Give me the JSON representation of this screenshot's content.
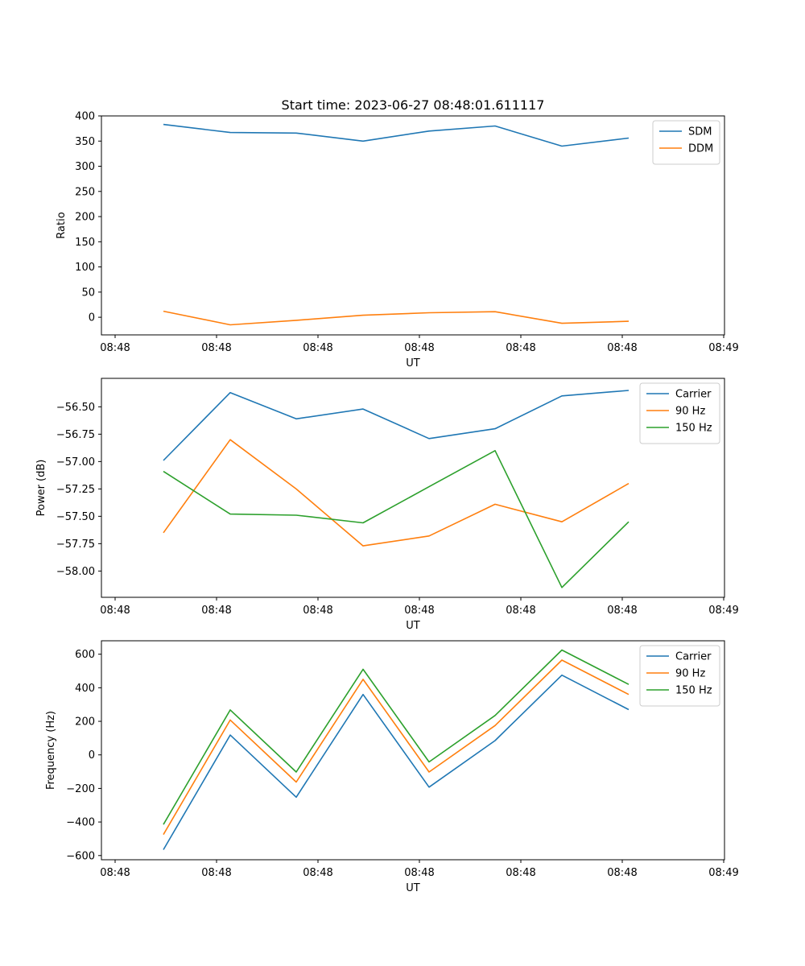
{
  "figure_title": "Start time: 2023-06-27 08:48:01.611117",
  "colors": {
    "blue": "#1f77b4",
    "orange": "#ff7f0e",
    "green": "#2ca02c"
  },
  "chart_data": [
    {
      "type": "line",
      "xlabel": "UT",
      "ylabel": "Ratio",
      "x_tick_labels": [
        "08:48",
        "08:48",
        "08:48",
        "08:48",
        "08:48",
        "08:48",
        "08:49"
      ],
      "yticks": [
        0,
        50,
        100,
        150,
        200,
        250,
        300,
        350,
        400
      ],
      "y_tick_labels": [
        "0",
        "50",
        "100",
        "150",
        "200",
        "250",
        "300",
        "350",
        "400"
      ],
      "ylim": [
        -35,
        400
      ],
      "legend": "upper right",
      "grid": false,
      "series": [
        {
          "name": "SDM",
          "color": "#1f77b4",
          "values": [
            383,
            367,
            366,
            350,
            370,
            380,
            340,
            356
          ]
        },
        {
          "name": "DDM",
          "color": "#ff7f0e",
          "values": [
            12,
            -15,
            -6,
            4,
            9,
            11,
            -12,
            -8
          ]
        }
      ]
    },
    {
      "type": "line",
      "xlabel": "UT",
      "ylabel": "Power (dB)",
      "x_tick_labels": [
        "08:48",
        "08:48",
        "08:48",
        "08:48",
        "08:48",
        "08:48",
        "08:49"
      ],
      "yticks": [
        -56.5,
        -56.75,
        -57.0,
        -57.25,
        -57.5,
        -57.75,
        -58.0
      ],
      "y_tick_labels": [
        "−56.50",
        "−56.75",
        "−57.00",
        "−57.25",
        "−57.50",
        "−57.75",
        "−58.00"
      ],
      "ylim": [
        -58.24,
        -56.24
      ],
      "legend": "upper right",
      "grid": false,
      "series": [
        {
          "name": "Carrier",
          "color": "#1f77b4",
          "values": [
            -56.99,
            -56.37,
            -56.61,
            -56.52,
            -56.79,
            -56.7,
            -56.4,
            -56.35
          ]
        },
        {
          "name": "90 Hz",
          "color": "#ff7f0e",
          "values": [
            -57.65,
            -56.8,
            -57.25,
            -57.77,
            -57.68,
            -57.39,
            -57.55,
            -57.2
          ]
        },
        {
          "name": "150 Hz",
          "color": "#2ca02c",
          "values": [
            -57.09,
            -57.48,
            -57.49,
            -57.56,
            -57.23,
            -56.9,
            -58.15,
            -57.55
          ]
        }
      ]
    },
    {
      "type": "line",
      "xlabel": "UT",
      "ylabel": "Frequency (Hz)",
      "x_tick_labels": [
        "08:48",
        "08:48",
        "08:48",
        "08:48",
        "08:48",
        "08:48",
        "08:49"
      ],
      "yticks": [
        -600,
        -400,
        -200,
        0,
        200,
        400,
        600
      ],
      "y_tick_labels": [
        "−600",
        "−400",
        "−200",
        "0",
        "200",
        "400",
        "600"
      ],
      "ylim": [
        -625,
        680
      ],
      "legend": "upper right",
      "grid": false,
      "series": [
        {
          "name": "Carrier",
          "color": "#1f77b4",
          "values": [
            -565,
            118,
            -252,
            360,
            -192,
            85,
            475,
            270
          ]
        },
        {
          "name": "90 Hz",
          "color": "#ff7f0e",
          "values": [
            -475,
            208,
            -162,
            450,
            -102,
            175,
            565,
            360
          ]
        },
        {
          "name": "150 Hz",
          "color": "#2ca02c",
          "values": [
            -415,
            268,
            -102,
            510,
            -42,
            235,
            625,
            420
          ]
        }
      ]
    }
  ]
}
